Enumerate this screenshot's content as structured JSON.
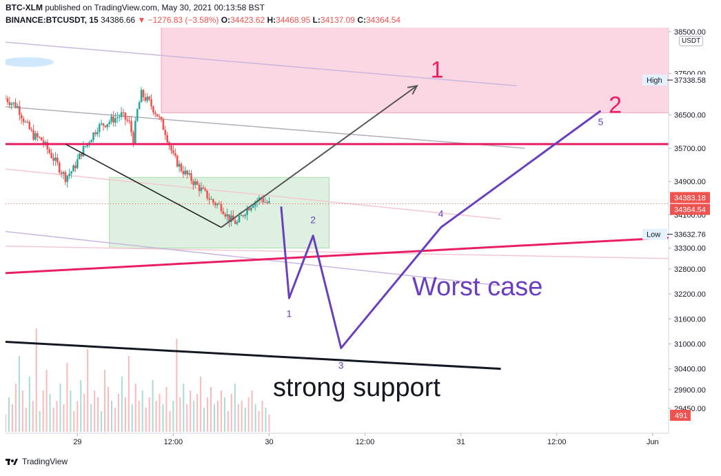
{
  "header": {
    "published_line": "BTC-XLM",
    "published_rest": " published on TradingView.com, May 30, 2021 00:13:58 BST",
    "symbol": "BINANCE:BTCUSDT, 15",
    "last": "34386.66",
    "change": "−1276.83 (−3.58%)",
    "open_label": "O:",
    "open": "34423.62",
    "high_label": "H:",
    "high": "34468.95",
    "low_label": "L:",
    "low": "34137.09",
    "close_label": "C:",
    "close": "34364.54"
  },
  "axis_unit": "USDT",
  "brand": "TradingView",
  "colors": {
    "up": "#26a69a",
    "down": "#ef5350",
    "accent_pink": "#e91e63",
    "wave": "#6a3fbf",
    "resistance_zone": "#f8bbd0",
    "consolidation_zone": "#c8e6c9"
  },
  "chart_data": {
    "type": "candlestick",
    "title": "",
    "ylim": [
      28200,
      38700
    ],
    "y_ticks": [
      38500,
      37500,
      36500,
      35700,
      34900,
      34100,
      33300,
      32800,
      32200,
      31600,
      31000,
      30400,
      29900,
      29450
    ],
    "y_tick_labels": [
      "38500.00",
      "37500.00",
      "36500.00",
      "35700.00",
      "34900.00",
      "34100.00",
      "33300.00",
      "32800.00",
      "32200.00",
      "31600.00",
      "31000.00",
      "30400.00",
      "29900.00",
      "29450.00"
    ],
    "x_ticks": [
      {
        "label": "29",
        "t": 20
      },
      {
        "label": "12:00",
        "t": 32
      },
      {
        "label": "30",
        "t": 44
      },
      {
        "label": "12:00",
        "t": 56
      },
      {
        "label": "31",
        "t": 68
      },
      {
        "label": "12:00",
        "t": 80
      },
      {
        "label": "Jun",
        "t": 92
      }
    ],
    "xlim": [
      11,
      94
    ],
    "price_path": [
      [
        11.0,
        36900
      ],
      [
        12.5,
        36700
      ],
      [
        13.5,
        36300
      ],
      [
        14.5,
        36000
      ],
      [
        15.5,
        35900
      ],
      [
        16.5,
        35600
      ],
      [
        17.5,
        35300
      ],
      [
        18.5,
        35000
      ],
      [
        19.5,
        35200
      ],
      [
        20.5,
        35600
      ],
      [
        21.5,
        35900
      ],
      [
        22.5,
        36200
      ],
      [
        23.5,
        36300
      ],
      [
        24.5,
        36400
      ],
      [
        25.5,
        36500
      ],
      [
        26.5,
        36300
      ],
      [
        27.0,
        35900
      ],
      [
        27.5,
        36600
      ],
      [
        28.0,
        37000
      ],
      [
        29.0,
        36800
      ],
      [
        30.0,
        36500
      ],
      [
        31.0,
        36100
      ],
      [
        32.0,
        35500
      ],
      [
        33.0,
        35200
      ],
      [
        34.0,
        35000
      ],
      [
        35.0,
        34800
      ],
      [
        36.0,
        34600
      ],
      [
        37.0,
        34400
      ],
      [
        38.0,
        34300
      ],
      [
        39.0,
        34000
      ],
      [
        40.0,
        33900
      ],
      [
        41.0,
        34200
      ],
      [
        42.0,
        34400
      ],
      [
        43.0,
        34500
      ],
      [
        43.6,
        34400
      ],
      [
        44.0,
        34365
      ]
    ],
    "volume": [
      5,
      10,
      8,
      14,
      22,
      12,
      7,
      16,
      9,
      30,
      6,
      12,
      18,
      11,
      7,
      9,
      14,
      8,
      20,
      12,
      6,
      9,
      15,
      11,
      24,
      8,
      12,
      10,
      6,
      18,
      13,
      9,
      7,
      11,
      16,
      10,
      22,
      8,
      14,
      9,
      12,
      7,
      10,
      15,
      9,
      11,
      8,
      13,
      6,
      9,
      27,
      10,
      14,
      8,
      12,
      9,
      11,
      16,
      7,
      10,
      13,
      8,
      9,
      12,
      10,
      6,
      11,
      14,
      8,
      9,
      7,
      10,
      12,
      8,
      6,
      9,
      7,
      5
    ],
    "markers": [
      {
        "label": "High",
        "value": "37338.58",
        "price": 37338.58
      },
      {
        "label": "Low",
        "value": "33632.76",
        "price": 33632.76
      }
    ],
    "price_tags": [
      {
        "value": "34383.18",
        "price": 34383.18
      },
      {
        "value": "34364.54",
        "price": 34364.54
      }
    ],
    "volume_tag": "491",
    "zones": {
      "resistance": {
        "t0": 30.5,
        "t1": 94,
        "p0": 36550,
        "p1": 38700
      },
      "consolidation": {
        "t0": 24,
        "t1": 51.5,
        "p0": 33300,
        "p1": 35000
      }
    },
    "horizontal_line": {
      "price": 35800
    },
    "rising_line": {
      "t0": 11,
      "p0": 32700,
      "t1": 94,
      "p1": 33550
    },
    "support_line": {
      "t0": 11,
      "p0": 31050,
      "t1": 73,
      "p1": 30400
    },
    "channel_lines": [
      {
        "t0": 11,
        "p0": 38250,
        "t1": 75,
        "p1": 37200,
        "color": "#c9b7e0"
      },
      {
        "t0": 11,
        "p0": 36700,
        "t1": 76,
        "p1": 35700,
        "color": "#b0aeb8"
      },
      {
        "t0": 11,
        "p0": 35200,
        "t1": 73,
        "p1": 34000,
        "color": "#f4c6d0"
      },
      {
        "t0": 11,
        "p0": 33350,
        "t1": 94,
        "p1": 33050,
        "color": "#f4c6d0"
      },
      {
        "t0": 11,
        "p0": 33700,
        "t1": 73,
        "p1": 32400,
        "color": "#c9b7e0"
      }
    ],
    "path_black": [
      [
        18.5,
        35800
      ],
      [
        38,
        33800
      ]
    ],
    "path_up": [
      [
        38,
        33800
      ],
      [
        62.5,
        37200
      ]
    ],
    "target_labels": [
      {
        "text": "1",
        "t": 64.2,
        "p": 37400
      },
      {
        "text": "2",
        "t": 86.5,
        "p": 36550
      }
    ],
    "worst_case_path": [
      [
        45.5,
        34300
      ],
      [
        46.5,
        32100
      ],
      [
        49.5,
        33600
      ],
      [
        53,
        30900
      ],
      [
        65.5,
        33800
      ],
      [
        85.5,
        36600
      ]
    ],
    "wave_labels": [
      {
        "text": "1",
        "t": 46.5,
        "p": 31650
      },
      {
        "text": "2",
        "t": 49.5,
        "p": 33900
      },
      {
        "text": "3",
        "t": 53,
        "p": 30400
      },
      {
        "text": "4",
        "t": 65.5,
        "p": 34050
      },
      {
        "text": "5",
        "t": 85.5,
        "p": 36250
      }
    ],
    "annotations": {
      "worst_case": "Worst case",
      "strong_support": "strong support"
    }
  }
}
